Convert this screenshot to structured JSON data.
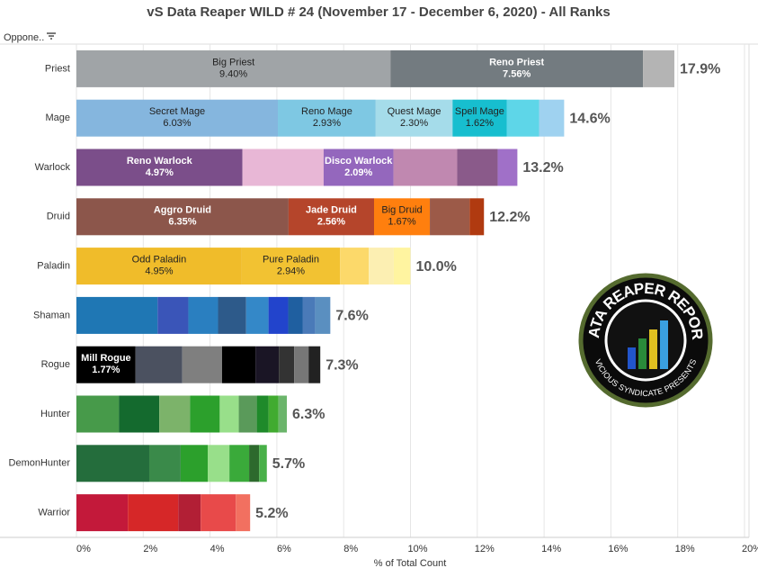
{
  "chart_data": {
    "type": "stacked-barh",
    "title": "vS Data Reaper WILD # 24 (November 17 - December 6, 2020) - All Ranks",
    "y_header": "Oppone..",
    "xlabel": "% of Total Count",
    "xlim": [
      0,
      20
    ],
    "xticks": [
      {
        "value": 0,
        "label": "0%"
      },
      {
        "value": 2,
        "label": "2%"
      },
      {
        "value": 4,
        "label": "4%"
      },
      {
        "value": 6,
        "label": "6%"
      },
      {
        "value": 8,
        "label": "8%"
      },
      {
        "value": 10,
        "label": "10%"
      },
      {
        "value": 12,
        "label": "12%"
      },
      {
        "value": 14,
        "label": "14%"
      },
      {
        "value": 16,
        "label": "16%"
      },
      {
        "value": 18,
        "label": "18%"
      },
      {
        "value": 20,
        "label": "20%"
      }
    ],
    "grid": true,
    "logo": {
      "top": "DATA REAPER REPORT",
      "bottom": "VICIOUS SYNDICATE PRESENTS"
    },
    "rows": [
      {
        "name": "Priest",
        "total": 17.9,
        "total_label": "17.9%",
        "segments": [
          {
            "name": "Big Priest",
            "value": 9.4,
            "value_label": "9.40%",
            "color": "#a0a4a7"
          },
          {
            "name": "Reno Priest",
            "value": 7.56,
            "value_label": "7.56%",
            "color": "#737b80"
          },
          {
            "value": 0.94,
            "color": "#b4b4b4"
          }
        ]
      },
      {
        "name": "Mage",
        "total": 14.6,
        "total_label": "14.6%",
        "segments": [
          {
            "name": "Secret Mage",
            "value": 6.03,
            "value_label": "6.03%",
            "color": "#85b6de"
          },
          {
            "name": "Reno Mage",
            "value": 2.93,
            "value_label": "2.93%",
            "color": "#7ec8e3"
          },
          {
            "name": "Quest Mage",
            "value": 2.3,
            "value_label": "2.30%",
            "color": "#a5dcea"
          },
          {
            "name": "Spell Mage",
            "value": 1.62,
            "value_label": "1.62%",
            "color": "#17becf"
          },
          {
            "value": 0.97,
            "color": "#5ed6e8"
          },
          {
            "value": 0.75,
            "color": "#9fd2f0"
          }
        ]
      },
      {
        "name": "Warlock",
        "total": 13.2,
        "total_label": "13.2%",
        "segments": [
          {
            "name": "Reno Warlock",
            "value": 4.97,
            "value_label": "4.97%",
            "color": "#7b4e8a"
          },
          {
            "value": 2.43,
            "color": "#e8b7d6"
          },
          {
            "name": "Disco Warlock",
            "value": 2.09,
            "value_label": "2.09%",
            "color": "#9467bd"
          },
          {
            "value": 1.91,
            "color": "#c088b0"
          },
          {
            "value": 1.21,
            "color": "#8a5a8a"
          },
          {
            "value": 0.59,
            "color": "#a070c8"
          }
        ]
      },
      {
        "name": "Druid",
        "total": 12.2,
        "total_label": "12.2%",
        "segments": [
          {
            "name": "Aggro Druid",
            "value": 6.35,
            "value_label": "6.35%",
            "color": "#8c564b"
          },
          {
            "name": "Jade Druid",
            "value": 2.56,
            "value_label": "2.56%",
            "color": "#b5452b"
          },
          {
            "name": "Big Druid",
            "value": 1.67,
            "value_label": "1.67%",
            "color": "#ff7f0e"
          },
          {
            "value": 1.19,
            "color": "#9c5a48"
          },
          {
            "value": 0.43,
            "color": "#b03a10"
          }
        ]
      },
      {
        "name": "Paladin",
        "total": 10.0,
        "total_label": "10.0%",
        "segments": [
          {
            "name": "Odd Paladin",
            "value": 4.95,
            "value_label": "4.95%",
            "color": "#f0bc2a"
          },
          {
            "name": "Pure Paladin",
            "value": 2.94,
            "value_label": "2.94%",
            "color": "#f2c232"
          },
          {
            "value": 0.86,
            "color": "#fcd96a"
          },
          {
            "value": 0.75,
            "color": "#fcefb2"
          },
          {
            "value": 0.5,
            "color": "#fff4a0"
          }
        ]
      },
      {
        "name": "Shaman",
        "total": 7.6,
        "total_label": "7.6%",
        "segments": [
          {
            "value": 2.43,
            "color": "#1f77b4"
          },
          {
            "value": 0.92,
            "color": "#3a55b8"
          },
          {
            "value": 0.89,
            "color": "#2a7fc0"
          },
          {
            "value": 0.84,
            "color": "#2d5a8a"
          },
          {
            "value": 0.67,
            "color": "#3488c8"
          },
          {
            "value": 0.59,
            "color": "#2244cc"
          },
          {
            "value": 0.43,
            "color": "#1f5fa0"
          },
          {
            "value": 0.38,
            "color": "#4a7ab8"
          },
          {
            "value": 0.45,
            "color": "#5a8fc0"
          }
        ]
      },
      {
        "name": "Rogue",
        "total": 7.3,
        "total_label": "7.3%",
        "segments": [
          {
            "name": "Mill Rogue",
            "value": 1.77,
            "value_label": "1.77%",
            "color": "#000000"
          },
          {
            "value": 1.4,
            "color": "#4b5160"
          },
          {
            "value": 1.19,
            "color": "#7f7f7f"
          },
          {
            "value": 1.0,
            "color": "#000000"
          },
          {
            "value": 0.7,
            "color": "#1a1525"
          },
          {
            "value": 0.46,
            "color": "#333333"
          },
          {
            "value": 0.43,
            "color": "#777777"
          },
          {
            "value": 0.35,
            "color": "#222222"
          }
        ]
      },
      {
        "name": "Hunter",
        "total": 6.3,
        "total_label": "6.3%",
        "segments": [
          {
            "value": 1.27,
            "color": "#479a4a"
          },
          {
            "value": 1.21,
            "color": "#146a2e"
          },
          {
            "value": 0.92,
            "color": "#7cb36a"
          },
          {
            "value": 0.89,
            "color": "#2ca02c"
          },
          {
            "value": 0.57,
            "color": "#98df8a"
          },
          {
            "value": 0.54,
            "color": "#5a9a5a"
          },
          {
            "value": 0.35,
            "color": "#1f8a2a"
          },
          {
            "value": 0.3,
            "color": "#41ab30"
          },
          {
            "value": 0.25,
            "color": "#6bb56b"
          }
        ]
      },
      {
        "name": "DemonHunter",
        "total": 5.7,
        "total_label": "5.7%",
        "segments": [
          {
            "value": 2.18,
            "color": "#246d3c"
          },
          {
            "value": 0.94,
            "color": "#3a8a4a"
          },
          {
            "value": 0.81,
            "color": "#2ca02c"
          },
          {
            "value": 0.65,
            "color": "#98df8a"
          },
          {
            "value": 0.59,
            "color": "#3aaa3a"
          },
          {
            "value": 0.3,
            "color": "#2d6a2d"
          },
          {
            "value": 0.23,
            "color": "#48b048"
          }
        ]
      },
      {
        "name": "Warrior",
        "total": 5.2,
        "total_label": "5.2%",
        "segments": [
          {
            "value": 1.54,
            "color": "#c3193a"
          },
          {
            "value": 1.51,
            "color": "#d62728"
          },
          {
            "value": 0.67,
            "color": "#b21f35"
          },
          {
            "value": 1.05,
            "color": "#e84a4a"
          },
          {
            "value": 0.43,
            "color": "#f27060"
          }
        ]
      }
    ]
  }
}
